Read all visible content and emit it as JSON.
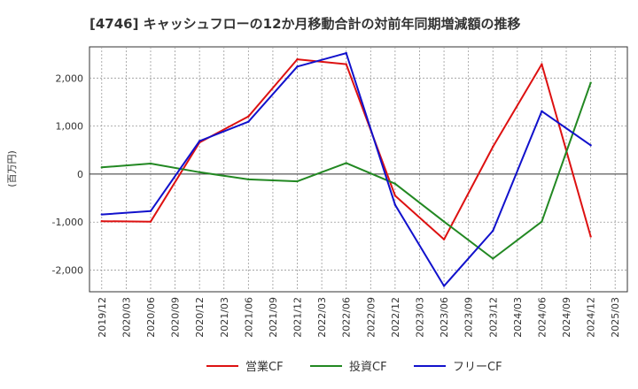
{
  "chart_data": {
    "type": "line",
    "title": "[4746]  キャッシュフローの12か月移動合計の対前年同期増減額の推移",
    "xlabel": "",
    "ylabel": "(百万円)",
    "ylim": [
      -2450,
      2650
    ],
    "yticks": [
      -2000,
      -1000,
      0,
      1000,
      2000
    ],
    "ytick_labels": [
      "-2,000",
      "-1,000",
      "0",
      "1,000",
      "2,000"
    ],
    "x": [
      "2019/12",
      "2020/03",
      "2020/06",
      "2020/09",
      "2020/12",
      "2021/03",
      "2021/06",
      "2021/09",
      "2021/12",
      "2022/03",
      "2022/06",
      "2022/09",
      "2022/12",
      "2023/03",
      "2023/06",
      "2023/09",
      "2023/12",
      "2024/03",
      "2024/06",
      "2024/09",
      "2024/12",
      "2025/03"
    ],
    "series": [
      {
        "name": "営業CF",
        "color": "#dd1111",
        "values": [
          -980,
          null,
          -990,
          null,
          660,
          null,
          1200,
          null,
          2390,
          null,
          2290,
          null,
          -450,
          null,
          -1360,
          null,
          570,
          null,
          2290,
          null,
          -1300,
          null
        ]
      },
      {
        "name": "投資CF",
        "color": "#228822",
        "values": [
          140,
          null,
          220,
          null,
          40,
          null,
          -110,
          null,
          -150,
          null,
          230,
          null,
          -200,
          null,
          -990,
          null,
          -1760,
          null,
          -990,
          null,
          1900,
          null
        ]
      },
      {
        "name": "フリーCF",
        "color": "#1111cc",
        "values": [
          -840,
          null,
          -770,
          null,
          690,
          null,
          1090,
          null,
          2240,
          null,
          2520,
          null,
          -640,
          null,
          -2330,
          null,
          -1180,
          null,
          1310,
          null,
          600,
          null
        ]
      }
    ],
    "grid": true,
    "legend": "bottom"
  }
}
